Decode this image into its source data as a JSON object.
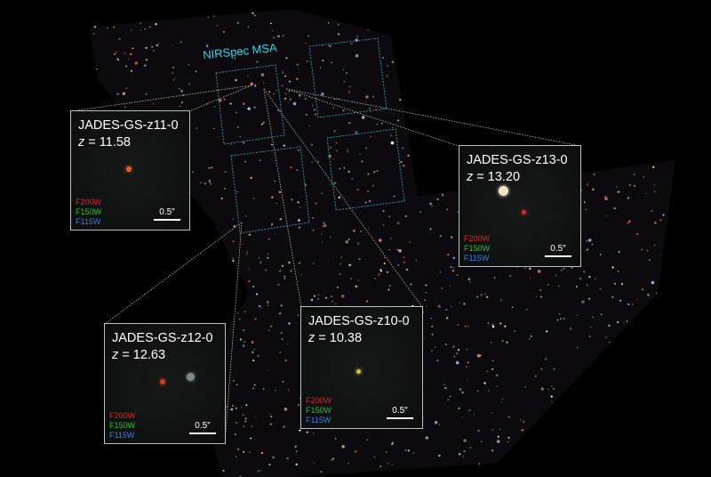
{
  "msa_label": "NIRSpec MSA",
  "colors": {
    "msa": "#2fd6e6",
    "f200w": "#e0242a",
    "f150w": "#29c22d",
    "f115w": "#3d7de0"
  },
  "filters": [
    "F200W",
    "F150W",
    "F115W"
  ],
  "scale_label": "0.5″",
  "insets": [
    {
      "id": "z11",
      "name": "JADES-GS-z11-0",
      "z_label": "z",
      "z_value": "= 11.58"
    },
    {
      "id": "z13",
      "name": "JADES-GS-z13-0",
      "z_label": "z",
      "z_value": "= 13.20"
    },
    {
      "id": "z12",
      "name": "JADES-GS-z12-0",
      "z_label": "z",
      "z_value": "= 12.63"
    },
    {
      "id": "z10",
      "name": "JADES-GS-z10-0",
      "z_label": "z",
      "z_value": "= 10.38"
    }
  ]
}
